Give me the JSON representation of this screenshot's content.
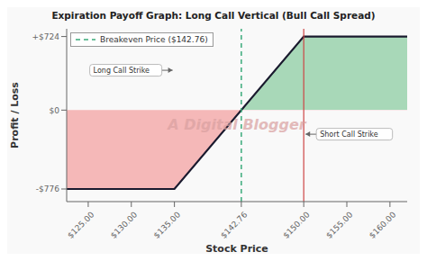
{
  "chart_data": {
    "type": "area",
    "title": "Expiration Payoff Graph: Long Call Vertical (Bull Call Spread)",
    "x_label": "Stock Price",
    "y_label": "Profit / Loss",
    "x": [
      122.5,
      135,
      150,
      162
    ],
    "values": [
      -776,
      -776,
      724,
      724
    ],
    "color": "#1a1a2e",
    "fill_colors": {
      "profit": "#a8d8b8",
      "loss": "#f5b8b8"
    },
    "background_color": "#f9f9f9",
    "xlim": [
      122.5,
      162
    ],
    "ylim": [
      -900,
      800
    ],
    "xticks": [
      {
        "value": 125,
        "label": "$125.00"
      },
      {
        "value": 130,
        "label": "$130.00"
      },
      {
        "value": 135,
        "label": "$135.00"
      },
      {
        "value": 142.76,
        "label": "$142.76"
      },
      {
        "value": 150,
        "label": "$150.00"
      },
      {
        "value": 155,
        "label": "$155.00"
      },
      {
        "value": 160,
        "label": "$160.00"
      }
    ],
    "yticks": [
      {
        "value": -776,
        "label": "-$776"
      },
      {
        "value": 0,
        "label": "$0"
      },
      {
        "value": 724,
        "label": "+$724"
      }
    ],
    "vlines": [
      {
        "x": 142.76,
        "name": "Breakeven Price ($142.76)",
        "color": "#3aaa7a",
        "line_style": "dashed"
      },
      {
        "x": 150,
        "color": "#cc4444",
        "line_style": "solid"
      }
    ],
    "annotations": [
      {
        "text": "Long Call Strike",
        "x": 135
      },
      {
        "text": "Short Call Strike",
        "x": 150
      }
    ],
    "watermark": {
      "text": "A Digital Blogger",
      "color": "#d9a0a0"
    },
    "legend": "upper left",
    "grid": false
  }
}
